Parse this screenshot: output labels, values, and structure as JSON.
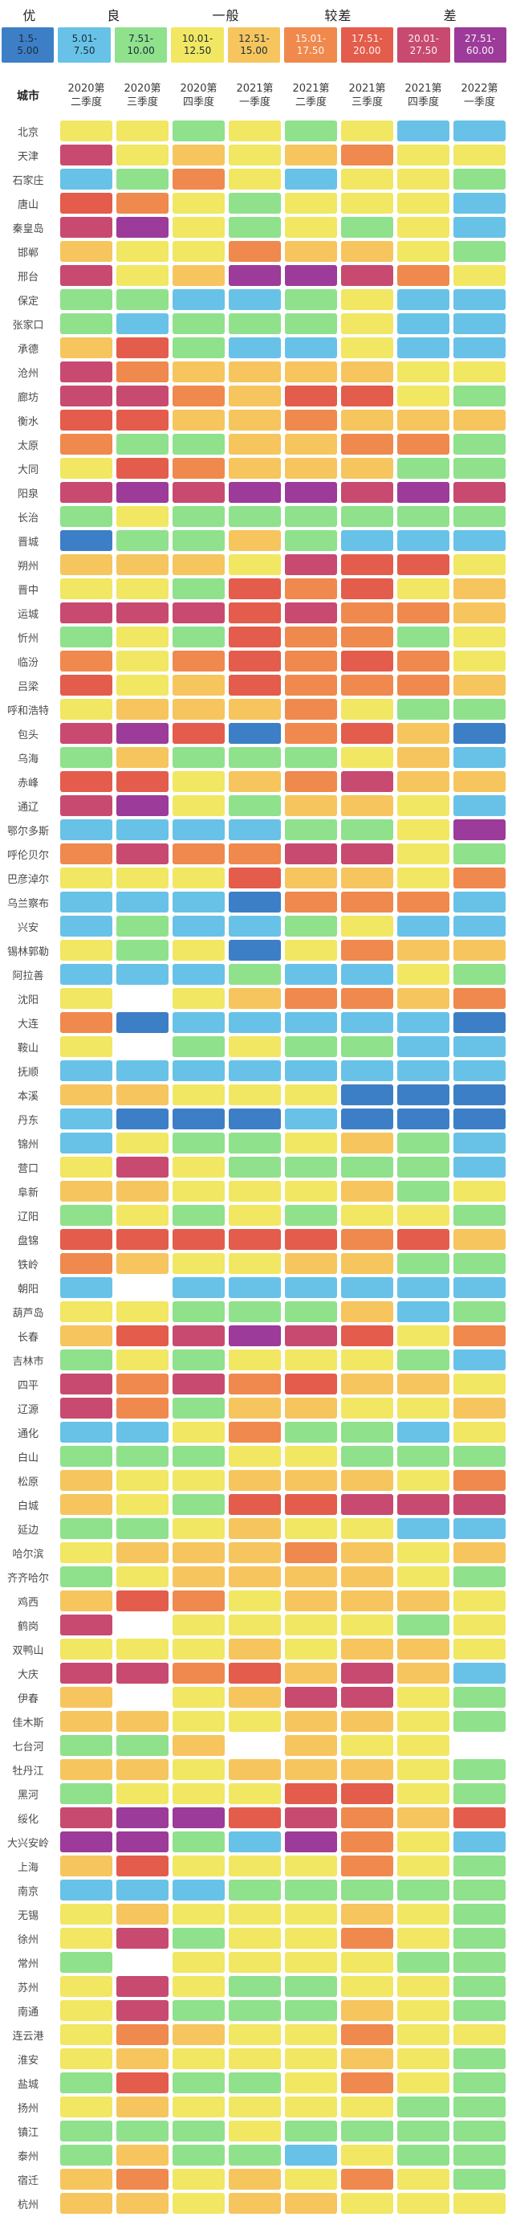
{
  "legend": {
    "categories": [
      {
        "label": "优"
      },
      {
        "label": "良"
      },
      {
        "label": "一般"
      },
      {
        "label": "较差"
      },
      {
        "label": "差"
      }
    ],
    "bins": [
      {
        "code": "b",
        "line1": "1.5-",
        "line2": "5.00",
        "text": "dark"
      },
      {
        "code": "s",
        "line1": "5.01-",
        "line2": "7.50",
        "text": "dark"
      },
      {
        "code": "g",
        "line1": "7.51-",
        "line2": "10.00",
        "text": "dark"
      },
      {
        "code": "y",
        "line1": "10.01-",
        "line2": "12.50",
        "text": "dark"
      },
      {
        "code": "o",
        "line1": "12.51-",
        "line2": "15.00",
        "text": "dark"
      },
      {
        "code": "r",
        "line1": "15.01-",
        "line2": "17.50",
        "text": "light"
      },
      {
        "code": "d",
        "line1": "17.51-",
        "line2": "20.00",
        "text": "light"
      },
      {
        "code": "m",
        "line1": "20.01-",
        "line2": "27.50",
        "text": "light"
      },
      {
        "code": "p",
        "line1": "27.51-",
        "line2": "60.00",
        "text": "light"
      }
    ]
  },
  "palette": {
    "b": "#3d7fc6",
    "s": "#68c2e7",
    "g": "#8fe18c",
    "y": "#f1e762",
    "o": "#f6c55e",
    "r": "#f0894d",
    "d": "#e45c4b",
    "m": "#c84a70",
    "p": "#9c3b99",
    "w": "#ffffff"
  },
  "table": {
    "city_header": "城市",
    "columns": [
      {
        "line1": "2020第",
        "line2": "二季度"
      },
      {
        "line1": "2020第",
        "line2": "三季度"
      },
      {
        "line1": "2020第",
        "line2": "四季度"
      },
      {
        "line1": "2021第",
        "line2": "一季度"
      },
      {
        "line1": "2021第",
        "line2": "二季度"
      },
      {
        "line1": "2021第",
        "line2": "三季度"
      },
      {
        "line1": "2021第",
        "line2": "四季度"
      },
      {
        "line1": "2022第",
        "line2": "一季度"
      }
    ]
  },
  "chart_data": {
    "type": "heatmap",
    "x_labels": [
      "2020第二季度",
      "2020第三季度",
      "2020第四季度",
      "2021第一季度",
      "2021第二季度",
      "2021第三季度",
      "2021第四季度",
      "2022第一季度"
    ],
    "y_labels": [
      "北京",
      "天津",
      "石家庄",
      "唐山",
      "秦皇岛",
      "邯郸",
      "邢台",
      "保定",
      "张家口",
      "承德",
      "沧州",
      "廊坊",
      "衡水",
      "太原",
      "大同",
      "阳泉",
      "长治",
      "晋城",
      "朔州",
      "晋中",
      "运城",
      "忻州",
      "临汾",
      "吕梁",
      "呼和浩特",
      "包头",
      "乌海",
      "赤峰",
      "通辽",
      "鄂尔多斯",
      "呼伦贝尔",
      "巴彦淖尔",
      "乌兰察布",
      "兴安",
      "锡林郭勒",
      "阿拉善",
      "沈阳",
      "大连",
      "鞍山",
      "抚顺",
      "本溪",
      "丹东",
      "锦州",
      "营口",
      "阜新",
      "辽阳",
      "盘锦",
      "铁岭",
      "朝阳",
      "葫芦岛",
      "长春",
      "吉林市",
      "四平",
      "辽源",
      "通化",
      "白山",
      "松原",
      "白城",
      "延边",
      "哈尔滨",
      "齐齐哈尔",
      "鸡西",
      "鹤岗",
      "双鸭山",
      "大庆",
      "伊春",
      "佳木斯",
      "七台河",
      "牡丹江",
      "黑河",
      "绥化",
      "大兴安岭",
      "上海",
      "南京",
      "无锡",
      "徐州",
      "常州",
      "苏州",
      "南通",
      "连云港",
      "淮安",
      "盐城",
      "扬州",
      "镇江",
      "泰州",
      "宿迁",
      "杭州"
    ],
    "cell_bins": [
      "yygygyss",
      "myoyoryy",
      "sgrysyyg",
      "drygyyys",
      "mpygygys",
      "oyyrooyg",
      "myoppmry",
      "ggssgyss",
      "gsgggyss",
      "odgssyss",
      "mrooooyy",
      "mmroddyg",
      "ddoorooo",
      "rggoorrg",
      "ydrooogg",
      "mpmppmpm",
      "gygggggg",
      "bggogsss",
      "oooymddy",
      "yygdrdyo",
      "mmmdmrro",
      "gygdrrgy",
      "ryrdrdry",
      "dyodrrro",
      "yooorygg",
      "mpdbrdob",
      "gogggyos",
      "ddyormoo",
      "mpygooys",
      "ssssggyp",
      "rmrrmmyg",
      "yyydooyr",
      "sssbrrrs",
      "sgssgyss",
      "ygybyroo",
      "sssgssyg",
      "ywyorror",
      "rbsssssb",
      "ywgyggss",
      "ssssssss",
      "ooyyybbb",
      "sbbbsbbb",
      "syggyogs",
      "ymyggggs",
      "ooyyyogy",
      "gygygyyg",
      "dddddrdo",
      "royyoogg",
      "swssssss",
      "yygggosg",
      "odmpmdyr",
      "gygyyygs",
      "mrmrdooy",
      "mrgooyyo",
      "ssyrggsy",
      "gggyyggg",
      "oyyoooyr",
      "oygddmmm",
      "ggyoyyss",
      "yoooroyo",
      "gyooooyg",
      "odryoooy",
      "mwyyyygy",
      "yyyoyooy",
      "mmrdomos",
      "owyommyg",
      "ooyyooyg",
      "ggowoyyw",
      "ooyoooyg",
      "gyyyddyg",
      "mppdmrod",
      "ppgsprys",
      "odyyyryg",
      "sssggggg",
      "yoyyyoyg",
      "ymgyyryg",
      "gwyyyygg",
      "ymyggyyg",
      "ymgggoyg",
      "yroyyryy",
      "yoyyyoyg",
      "gdggyryg",
      "yoyyyygg",
      "gggygggg",
      "goggsygg",
      "oryoyryg",
      "ooyooyyy"
    ],
    "bin_legend": {
      "b": "优 1.5-5.00",
      "s": "良 5.01-7.50",
      "g": "良 7.51-10.00",
      "y": "一般 10.01-12.50",
      "o": "一般 12.51-15.00",
      "r": "较差 15.01-17.50",
      "d": "较差 17.51-20.00",
      "m": "差 20.01-27.50",
      "p": "差 27.51-60.00",
      "w": "missing"
    },
    "legend_position": "top",
    "grid": false
  }
}
